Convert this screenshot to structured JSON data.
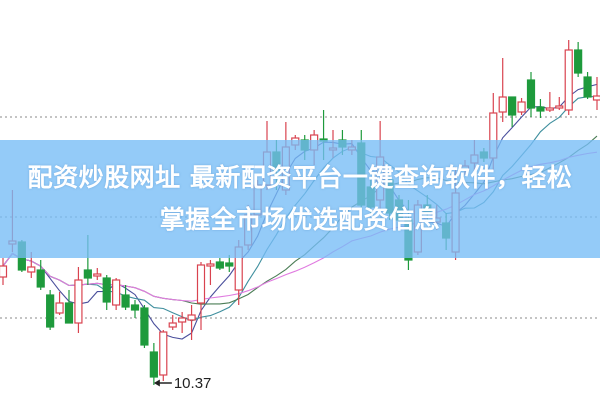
{
  "banner": {
    "line1": "配资炒股网址 最新配资平台一键查询软件，轻松",
    "line2": "掌握全市场优选配资信息"
  },
  "chart_data": {
    "type": "candlestick",
    "title": "",
    "xlabel": "",
    "ylabel": "",
    "ylim": [
      10.21,
      14.22
    ],
    "grid": "dotted horizontal",
    "colors": {
      "up": "#d9434f",
      "down": "#1e9a3c",
      "ma5": "#4a4f9c",
      "ma10": "#3f8f9e",
      "ma20": "#4b7d56",
      "ma30": "#e07be0"
    },
    "low_annotation": {
      "label": "10.37",
      "value": 10.37
    },
    "candles": [
      [
        11.45,
        11.56,
        11.64,
        11.37
      ],
      [
        11.78,
        11.81,
        12.32,
        11.7
      ],
      [
        11.8,
        11.52,
        11.82,
        11.5
      ],
      [
        11.5,
        11.55,
        11.7,
        11.44
      ],
      [
        11.52,
        11.35,
        11.62,
        11.32
      ],
      [
        11.27,
        10.95,
        11.32,
        10.92
      ],
      [
        11.09,
        11.19,
        11.3,
        11.07
      ],
      [
        11.19,
        10.99,
        11.32,
        10.99
      ],
      [
        10.99,
        11.42,
        11.55,
        10.89
      ],
      [
        11.52,
        11.44,
        11.87,
        11.37
      ],
      [
        11.46,
        11.48,
        11.54,
        11.42
      ],
      [
        11.44,
        11.2,
        11.47,
        11.12
      ],
      [
        11.17,
        11.42,
        11.44,
        11.12
      ],
      [
        11.27,
        11.15,
        11.37,
        11.12
      ],
      [
        11.17,
        11.12,
        11.22,
        11.04
      ],
      [
        11.14,
        10.77,
        11.17,
        10.74
      ],
      [
        10.7,
        10.45,
        10.79,
        10.37
      ],
      [
        10.47,
        10.9,
        10.92,
        10.41
      ],
      [
        10.95,
        10.99,
        11.07,
        10.92
      ],
      [
        11.0,
        11.04,
        11.1,
        10.89
      ],
      [
        11.02,
        11.07,
        11.17,
        10.82
      ],
      [
        11.19,
        11.57,
        11.6,
        10.92
      ],
      [
        11.56,
        11.58,
        11.62,
        11.37
      ],
      [
        11.6,
        11.54,
        11.64,
        11.52
      ],
      [
        11.59,
        11.56,
        11.67,
        11.5
      ],
      [
        11.32,
        11.75,
        11.82,
        11.17
      ],
      [
        11.77,
        12.07,
        12.17,
        11.72
      ],
      [
        12.07,
        12.37,
        12.42,
        12.02
      ],
      [
        12.37,
        12.7,
        13.01,
        12.32
      ],
      [
        12.7,
        12.52,
        12.82,
        12.32
      ],
      [
        12.32,
        12.75,
        13.0,
        12.27
      ],
      [
        12.77,
        12.84,
        12.87,
        12.72
      ],
      [
        12.82,
        12.72,
        12.87,
        12.62
      ],
      [
        12.72,
        12.87,
        12.92,
        12.57
      ],
      [
        12.83,
        12.81,
        13.12,
        12.62
      ],
      [
        12.72,
        12.74,
        12.92,
        12.64
      ],
      [
        12.82,
        12.75,
        12.92,
        12.67
      ],
      [
        12.72,
        12.75,
        12.82,
        12.67
      ],
      [
        12.79,
        12.17,
        12.92,
        12.12
      ],
      [
        12.35,
        12.15,
        12.42,
        12.07
      ],
      [
        12.22,
        12.65,
        13.01,
        12.12
      ],
      [
        12.42,
        12.09,
        12.52,
        12.02
      ],
      [
        12.22,
        12.02,
        12.27,
        11.97
      ],
      [
        12.02,
        11.62,
        12.22,
        11.52
      ],
      [
        11.7,
        12.17,
        12.22,
        11.67
      ],
      [
        12.17,
        12.1,
        12.27,
        12.02
      ],
      [
        12.0,
        12.04,
        12.17,
        11.92
      ],
      [
        11.99,
        11.84,
        12.09,
        11.72
      ],
      [
        11.7,
        12.29,
        12.55,
        11.62
      ],
      [
        12.52,
        12.56,
        12.62,
        12.47
      ],
      [
        12.59,
        12.67,
        12.82,
        12.45
      ],
      [
        12.7,
        12.64,
        12.74,
        12.6
      ],
      [
        12.64,
        13.09,
        13.29,
        12.52
      ],
      [
        13.1,
        13.25,
        13.64,
        13.0
      ],
      [
        13.25,
        13.07,
        13.25,
        12.95
      ],
      [
        13.1,
        13.2,
        13.24,
        13.07
      ],
      [
        13.42,
        13.14,
        13.5,
        13.05
      ],
      [
        13.15,
        13.11,
        13.23,
        13.04
      ],
      [
        13.12,
        13.14,
        13.3,
        13.1
      ],
      [
        13.14,
        13.16,
        13.25,
        13.12
      ],
      [
        13.12,
        13.72,
        13.82,
        13.07
      ],
      [
        13.72,
        13.49,
        13.8,
        13.45
      ],
      [
        13.45,
        13.25,
        13.5,
        13.23
      ],
      [
        13.22,
        13.26,
        13.45,
        13.12
      ]
    ]
  }
}
